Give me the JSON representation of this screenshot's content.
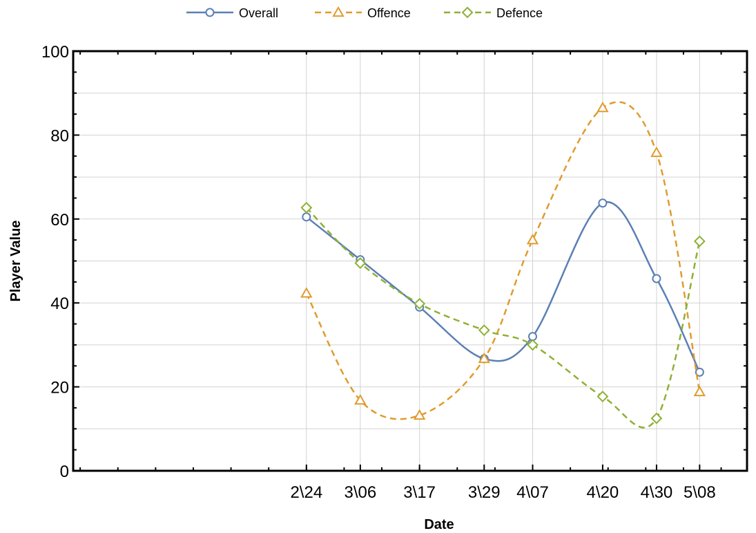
{
  "chart_data": {
    "type": "line",
    "title": "",
    "xlabel": "Date",
    "ylabel": "Player Value",
    "categories": [
      "2\\24",
      "3\\06",
      "3\\17",
      "3\\29",
      "4\\07",
      "4\\20",
      "4\\30",
      "5\\08"
    ],
    "x_day_offsets": [
      0,
      10,
      21,
      33,
      42,
      55,
      65,
      73
    ],
    "ylim": [
      0,
      100
    ],
    "yticks": [
      0,
      20,
      40,
      60,
      80,
      100
    ],
    "grid": true,
    "legend_position": "top-center",
    "series": [
      {
        "name": "Overall",
        "color": "#5b7fb5",
        "dash": "solid",
        "marker": "circle",
        "values": [
          60.5,
          50.3,
          39,
          26.7,
          32,
          63.8,
          45.8,
          23.5
        ]
      },
      {
        "name": "Offence",
        "color": "#e09b2d",
        "dash": "dashed",
        "marker": "triangle",
        "values": [
          42.3,
          16.8,
          13.2,
          26.7,
          55,
          86.5,
          75.8,
          18.8
        ]
      },
      {
        "name": "Defence",
        "color": "#8eb034",
        "dash": "dashed",
        "marker": "diamond",
        "values": [
          62.7,
          49.5,
          39.8,
          33.5,
          30,
          17.7,
          12.5,
          54.7
        ]
      }
    ]
  }
}
